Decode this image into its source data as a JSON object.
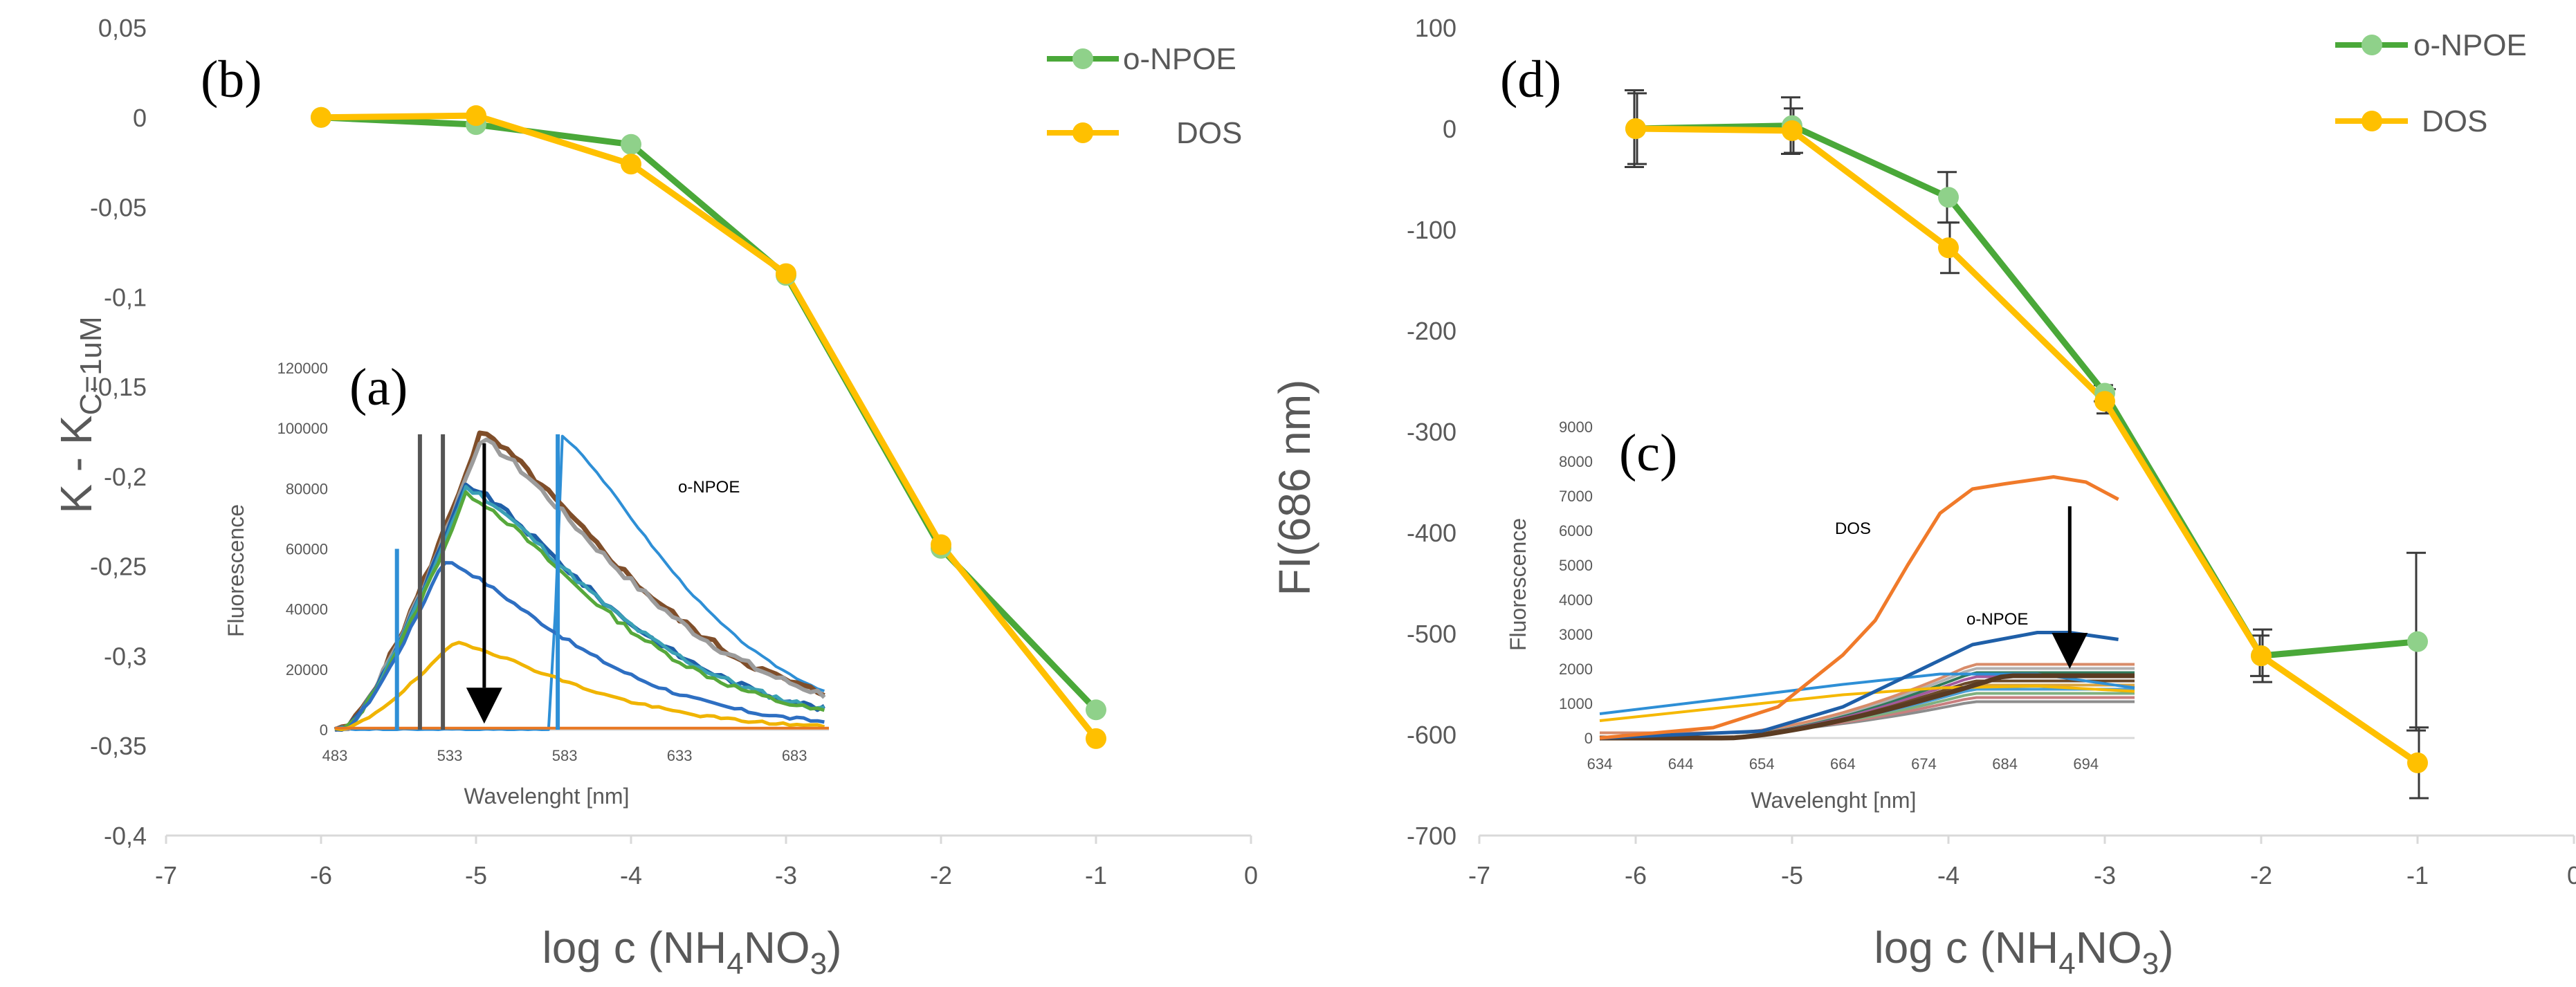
{
  "colors": {
    "npoe": "#4aa839",
    "npoe_marker": "#8fd18a",
    "dos": "#ffc000",
    "dos_marker": "#ffc000",
    "arrow": "#000000"
  },
  "chart_data": [
    {
      "id": "b",
      "type": "line",
      "panel_label": "(b)",
      "ylabel_main": "K - K",
      "ylabel_sub": "C=1uM",
      "xlabel_main": "log c (NH",
      "xlabel_sub1": "4",
      "xlabel_mid": "NO",
      "xlabel_sub2": "3",
      "xlabel_end": ")",
      "xlim": [
        -7,
        0
      ],
      "ylim": [
        -0.4,
        0.05
      ],
      "xticks": [
        -7,
        -6,
        -5,
        -4,
        -3,
        -2,
        -1,
        0
      ],
      "xtick_labels": [
        "-7",
        "-6",
        "-5",
        "-4",
        "-3",
        "-2",
        "-1",
        "0"
      ],
      "yticks": [
        0.05,
        0,
        -0.05,
        -0.1,
        -0.15,
        -0.2,
        -0.25,
        -0.3,
        -0.35,
        -0.4
      ],
      "ytick_labels": [
        "0,05",
        "0",
        "-0,05",
        "-0,1",
        "-0,15",
        "-0,2",
        "-0,25",
        "-0,3",
        "-0,35",
        "-0,4"
      ],
      "x": [
        -6,
        -5,
        -4,
        -3,
        -2,
        -1
      ],
      "series": [
        {
          "name": "o-NPOE",
          "values": [
            0,
            -0.004,
            -0.015,
            -0.088,
            -0.24,
            -0.33
          ]
        },
        {
          "name": "DOS",
          "values": [
            0,
            0.001,
            -0.026,
            -0.087,
            -0.238,
            -0.346
          ]
        }
      ],
      "legend": [
        "o-NPOE",
        "DOS"
      ]
    },
    {
      "id": "d",
      "type": "line",
      "panel_label": "(d)",
      "ylabel": "FI(686 nm)",
      "xlabel_main": "log c (NH",
      "xlabel_sub1": "4",
      "xlabel_mid": "NO",
      "xlabel_sub2": "3",
      "xlabel_end": ")",
      "xlim": [
        -7,
        0
      ],
      "ylim": [
        -700,
        100
      ],
      "xticks": [
        -7,
        -6,
        -5,
        -4,
        -3,
        -2,
        -1,
        0
      ],
      "xtick_labels": [
        "-7",
        "-6",
        "-5",
        "-4",
        "-3",
        "-2",
        "-1",
        "0"
      ],
      "yticks": [
        100,
        0,
        -100,
        -200,
        -300,
        -400,
        -500,
        -600,
        -700
      ],
      "ytick_labels": [
        "100",
        "0",
        "-100",
        "-200",
        "-300",
        "-400",
        "-500",
        "-600",
        "-700"
      ],
      "x": [
        -6,
        -5,
        -4,
        -3,
        -2,
        -1
      ],
      "series": [
        {
          "name": "o-NPOE",
          "values": [
            0,
            3,
            -68,
            -262,
            -522,
            -508
          ],
          "errors": [
            38,
            28,
            25,
            8,
            20,
            88
          ]
        },
        {
          "name": "DOS",
          "values": [
            0,
            -2,
            -118,
            -270,
            -522,
            -628
          ],
          "errors": [
            35,
            22,
            25,
            12,
            26,
            35
          ]
        }
      ],
      "legend": [
        "o-NPOE",
        "DOS"
      ]
    }
  ],
  "insets": {
    "a": {
      "panel_label": "(a)",
      "xlabel": "Wavelenght [nm]",
      "ylabel": "Fluorescence",
      "annotation": "o-NPOE",
      "xlim": [
        483,
        698
      ],
      "ylim": [
        0,
        120000
      ],
      "xticks": [
        483,
        533,
        583,
        633,
        683
      ],
      "xtick_labels": [
        "483",
        "533",
        "583",
        "633",
        "683"
      ],
      "yticks": [
        0,
        20000,
        40000,
        60000,
        80000,
        100000,
        120000
      ],
      "ytick_labels": [
        "0",
        "20000",
        "40000",
        "60000",
        "80000",
        "100000",
        "120000"
      ],
      "arrow_x": 548,
      "arrow_y_from": 95000,
      "arrow_y_to": 2000
    },
    "c": {
      "panel_label": "(c)",
      "xlabel": "Wavelenght [nm]",
      "ylabel": "Fluorescence",
      "annotation_dos": "DOS",
      "annotation_npoe": "o-NPOE",
      "xlim": [
        634,
        700
      ],
      "ylim": [
        0,
        9000
      ],
      "xticks": [
        634,
        644,
        654,
        664,
        674,
        684,
        694
      ],
      "xtick_labels": [
        "634",
        "644",
        "654",
        "664",
        "674",
        "684",
        "694"
      ],
      "yticks": [
        0,
        1000,
        2000,
        3000,
        4000,
        5000,
        6000,
        7000,
        8000,
        9000
      ],
      "ytick_labels": [
        "0",
        "1000",
        "2000",
        "3000",
        "4000",
        "5000",
        "6000",
        "7000",
        "8000",
        "9000"
      ],
      "arrow_x": 692,
      "arrow_y_from": 6700,
      "arrow_y_to": 2000
    }
  }
}
